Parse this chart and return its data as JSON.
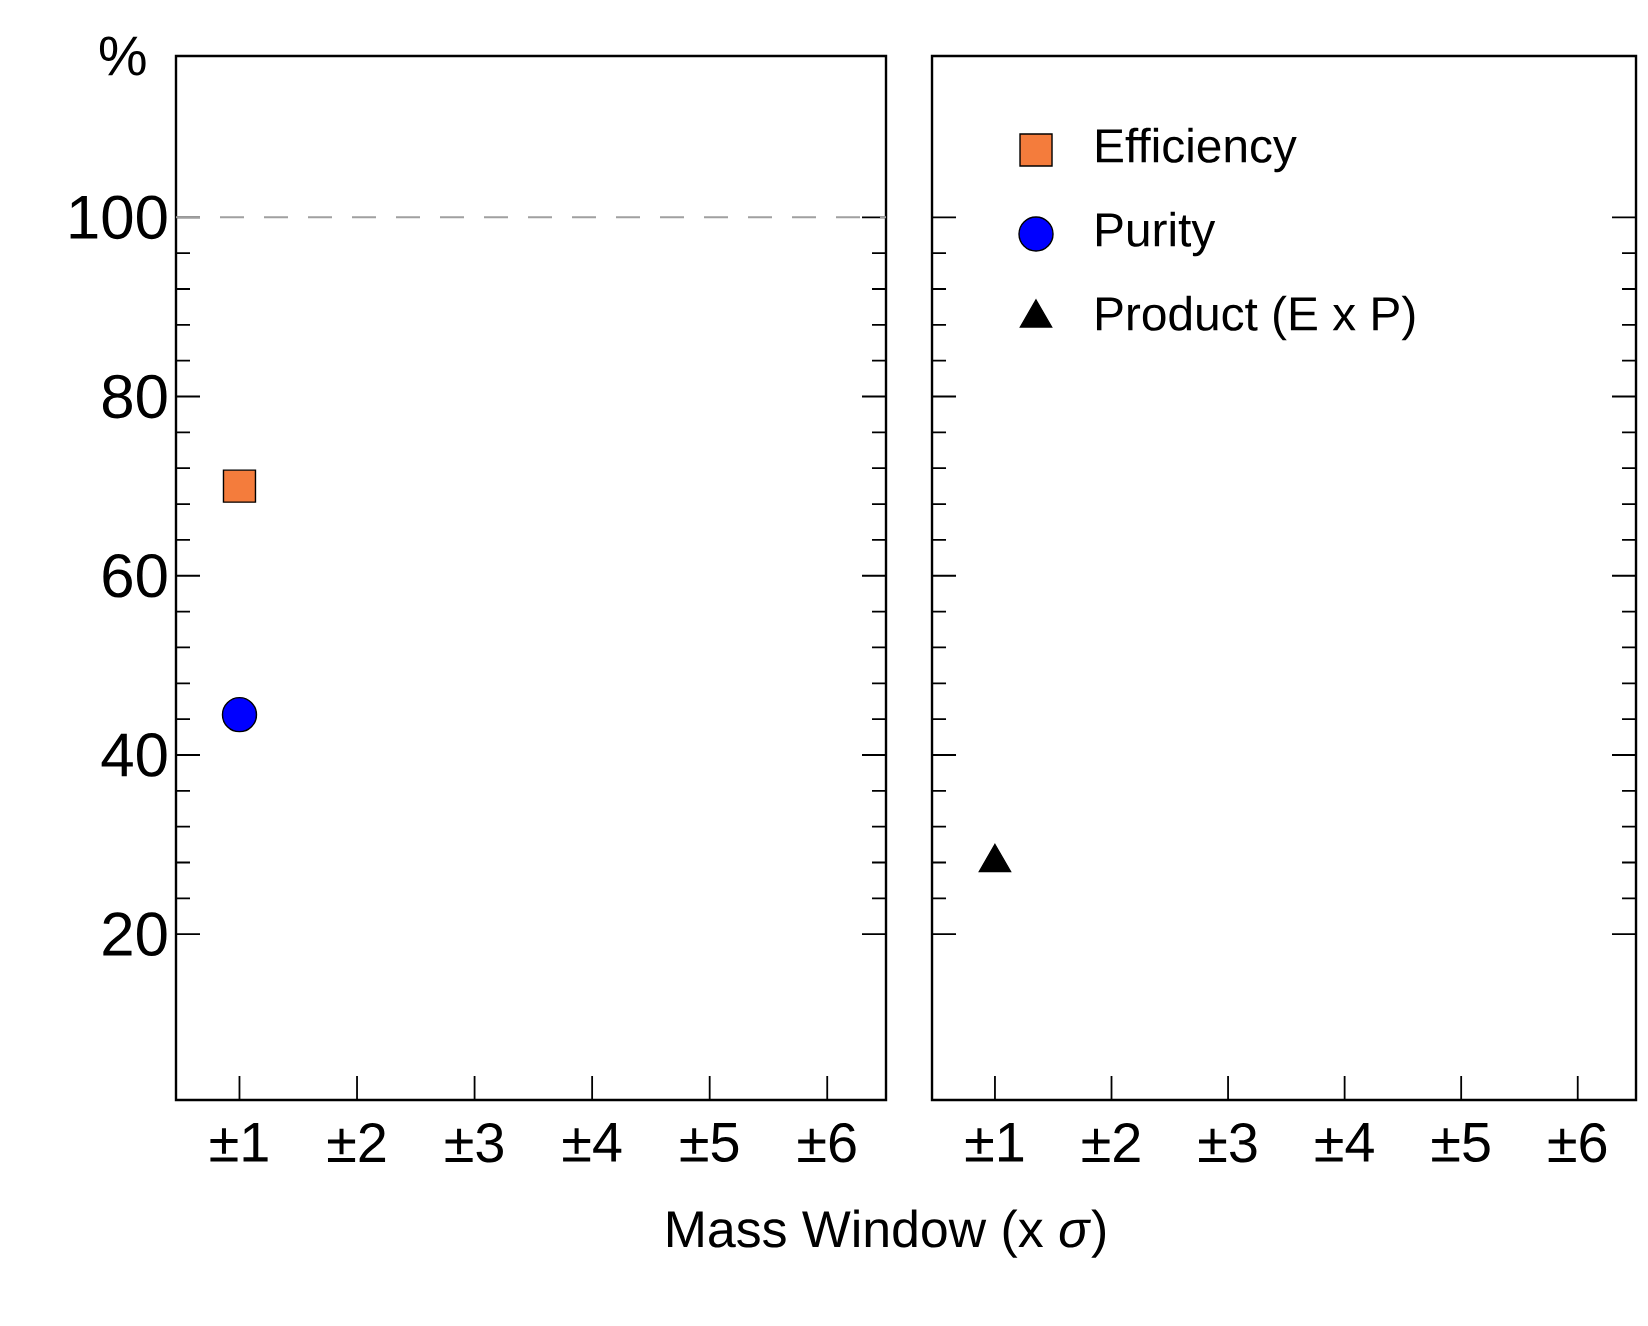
{
  "chart_data": [
    {
      "type": "scatter",
      "legend": "right",
      "ylabel": "%",
      "xlabel": "Mass Window (x *σ*)",
      "categories": [
        "±1",
        "±2",
        "±3",
        "±4",
        "±5",
        "±6"
      ],
      "ylim": [
        1.5,
        118
      ],
      "yticks": [
        20,
        40,
        60,
        80,
        100
      ],
      "ref_lines": [
        {
          "axis": "y",
          "value": 100,
          "color": "#a0a0a0",
          "line_style": "dashed"
        }
      ],
      "series": [
        {
          "name": "Efficiency",
          "color": "#f47c3c",
          "marker": "square",
          "values": [
            70,
            null,
            null,
            null,
            null,
            null
          ]
        },
        {
          "name": "Purity",
          "color": "#0000ff",
          "marker": "circle",
          "values": [
            44.5,
            null,
            null,
            null,
            null,
            null
          ]
        }
      ]
    },
    {
      "type": "scatter",
      "categories": [
        "±1",
        "±2",
        "±3",
        "±4",
        "±5",
        "±6"
      ],
      "ylim": [
        1.5,
        118
      ],
      "yticks": [
        20,
        40,
        60,
        80,
        100
      ],
      "tick_labels": "x",
      "legend": "top left",
      "series": [
        {
          "name": "Product (E x P)",
          "color": "#000000",
          "marker": "triangle",
          "values": [
            28,
            null,
            null,
            null,
            null,
            null
          ]
        }
      ]
    }
  ]
}
